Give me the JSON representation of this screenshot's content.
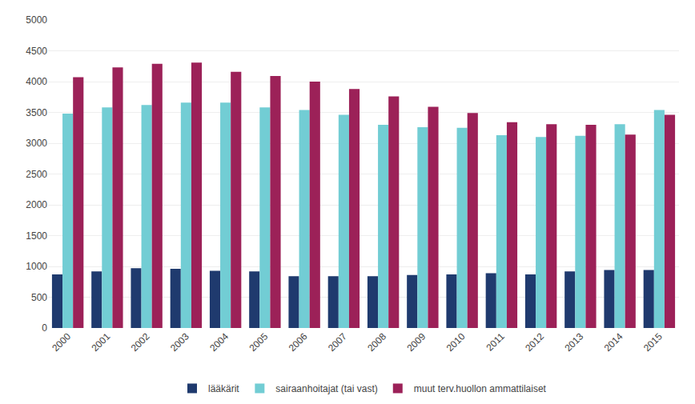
{
  "chart_data": {
    "type": "bar",
    "categories": [
      "2000",
      "2001",
      "2002",
      "2003",
      "2004",
      "2005",
      "2006",
      "2007",
      "2008",
      "2009",
      "2010",
      "2011",
      "2012",
      "2013",
      "2014",
      "2015"
    ],
    "series": [
      {
        "name": "lääkärit",
        "color": "#1f3a6e",
        "values": [
          870,
          920,
          970,
          960,
          930,
          920,
          840,
          840,
          840,
          860,
          870,
          890,
          870,
          920,
          940,
          940
        ]
      },
      {
        "name": "sairaanhoitajat (tai vast)",
        "color": "#72cdd4",
        "values": [
          3480,
          3580,
          3620,
          3660,
          3660,
          3580,
          3540,
          3460,
          3300,
          3260,
          3250,
          3130,
          3100,
          3120,
          3310,
          3540
        ]
      },
      {
        "name": "muut terv.huollon ammattilaiset",
        "color": "#9c2158",
        "values": [
          4070,
          4230,
          4290,
          4310,
          4160,
          4090,
          4000,
          3880,
          3760,
          3590,
          3490,
          3340,
          3310,
          3300,
          3140,
          3460
        ]
      }
    ],
    "ylim": [
      0,
      5000
    ],
    "yticks": [
      0,
      500,
      1000,
      1500,
      2000,
      2500,
      3000,
      3500,
      4000,
      4500,
      5000
    ],
    "grid": true,
    "legend": "bottom"
  }
}
